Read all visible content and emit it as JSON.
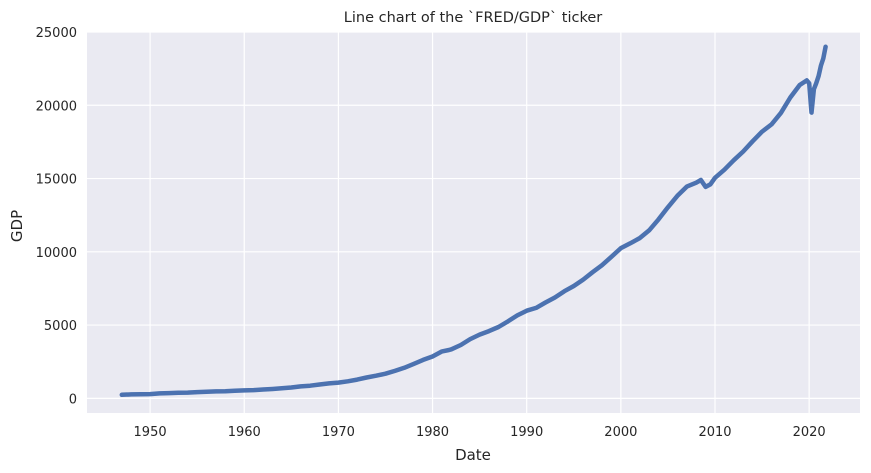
{
  "chart_data": {
    "type": "line",
    "title": "Line chart of the `FRED/GDP` ticker",
    "xlabel": "Date",
    "ylabel": "GDP",
    "xlim": [
      1943.3,
      2025.4
    ],
    "ylim": [
      -1000,
      25000
    ],
    "xticks": [
      1950,
      1960,
      1970,
      1980,
      1990,
      2000,
      2010,
      2020
    ],
    "yticks": [
      0,
      5000,
      10000,
      15000,
      20000,
      25000
    ],
    "grid": true,
    "background": "#eaeaf2",
    "grid_color": "#ffffff",
    "line_color": "#4c72b0",
    "series": [
      {
        "x": [
          1947,
          1948,
          1949,
          1950,
          1951,
          1952,
          1953,
          1954,
          1955,
          1956,
          1957,
          1958,
          1959,
          1960,
          1961,
          1962,
          1963,
          1964,
          1965,
          1966,
          1967,
          1968,
          1969,
          1970,
          1971,
          1972,
          1973,
          1974,
          1975,
          1976,
          1977,
          1978,
          1979,
          1980,
          1981,
          1981.75,
          1982,
          1983,
          1984,
          1985,
          1986,
          1987,
          1988,
          1989,
          1990,
          1991,
          1992,
          1993,
          1994,
          1995,
          1996,
          1997,
          1998,
          1999,
          2000,
          2001,
          2002,
          2003,
          2004,
          2005,
          2006,
          2007,
          2008,
          2008.5,
          2009,
          2009.5,
          2010,
          2011,
          2012,
          2013,
          2014,
          2015,
          2016,
          2017,
          2018,
          2019,
          2019.75,
          2020,
          2020.25,
          2020.5,
          2020.75,
          2021,
          2021.25,
          2021.5,
          2021.75
        ],
        "values": [
          244,
          266,
          273,
          293,
          339,
          360,
          385,
          389,
          425,
          449,
          474,
          482,
          522,
          543,
          563,
          605,
          638,
          686,
          743,
          815,
          862,
          942,
          1019,
          1073,
          1165,
          1279,
          1425,
          1545,
          1685,
          1873,
          2082,
          2352,
          2627,
          2857,
          3207,
          3300,
          3345,
          3638,
          4040,
          4347,
          4590,
          4870,
          5253,
          5658,
          5980,
          6174,
          6539,
          6879,
          7309,
          7664,
          8100,
          8609,
          9089,
          9661,
          10252,
          10582,
          10936,
          11458,
          12213,
          13036,
          13815,
          14452,
          14713,
          14900,
          14430,
          14600,
          15049,
          15600,
          16254,
          16843,
          17551,
          18206,
          18695,
          19477,
          20533,
          21381,
          21700,
          21500,
          19500,
          21100,
          21500,
          22000,
          22700,
          23200,
          24000
        ]
      }
    ]
  }
}
